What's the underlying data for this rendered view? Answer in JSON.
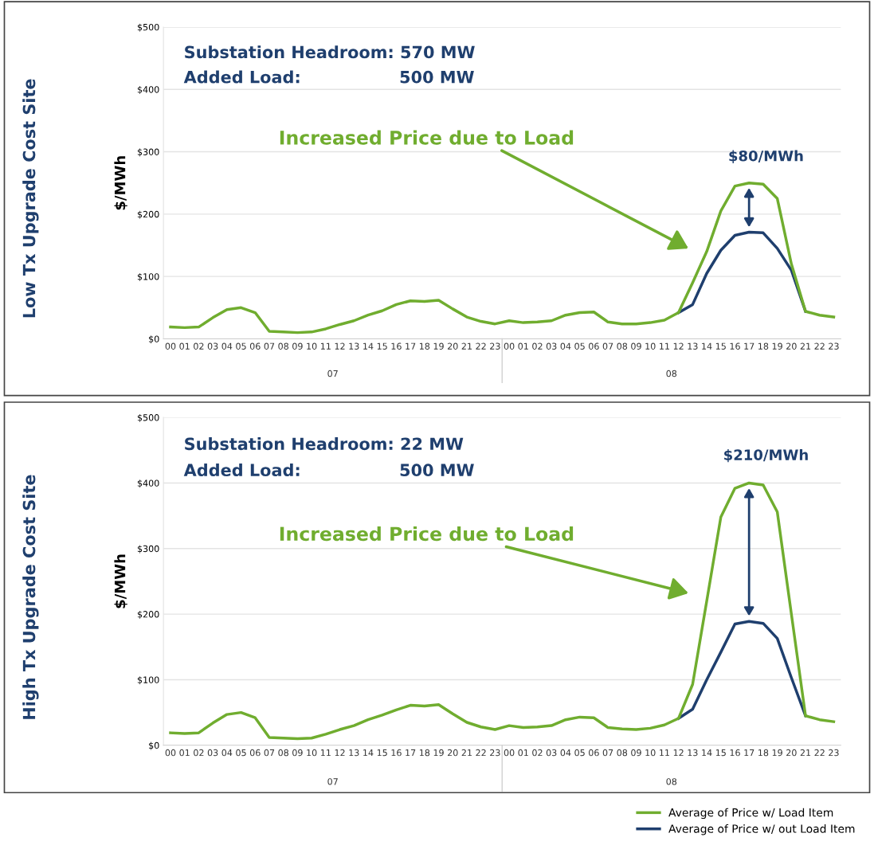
{
  "chart_data": [
    {
      "type": "line",
      "title": "Low Tx Upgrade Cost Site",
      "ylabel": "$/MWh",
      "categories": [
        "00",
        "01",
        "02",
        "03",
        "04",
        "05",
        "06",
        "07",
        "08",
        "09",
        "10",
        "11",
        "12",
        "13",
        "14",
        "15",
        "16",
        "17",
        "18",
        "19",
        "20",
        "21",
        "22",
        "23",
        "00",
        "01",
        "02",
        "03",
        "04",
        "05",
        "06",
        "07",
        "08",
        "09",
        "10",
        "11",
        "12",
        "13",
        "14",
        "15",
        "16",
        "17",
        "18",
        "19",
        "20",
        "21",
        "22",
        "23"
      ],
      "series": [
        {
          "name": "Average of Price w/ out Load Item",
          "color": "#1f3f6e",
          "values": [
            null,
            null,
            null,
            null,
            null,
            null,
            null,
            null,
            null,
            null,
            null,
            null,
            null,
            null,
            null,
            null,
            null,
            null,
            null,
            null,
            null,
            null,
            null,
            null,
            null,
            null,
            null,
            null,
            null,
            null,
            null,
            null,
            null,
            null,
            null,
            null,
            42,
            55,
            105,
            142,
            166,
            171,
            170,
            145,
            110,
            44,
            null,
            null
          ]
        },
        {
          "name": "Average of Price w/ Load Item",
          "color": "#70ad2f",
          "values": [
            19,
            18,
            19,
            34,
            47,
            50,
            42,
            12,
            11,
            10,
            11,
            16,
            23,
            29,
            38,
            45,
            55,
            61,
            60,
            62,
            48,
            35,
            28,
            24,
            29,
            26,
            27,
            29,
            38,
            42,
            43,
            27,
            24,
            24,
            26,
            30,
            42,
            90,
            140,
            205,
            245,
            250,
            248,
            225,
            120,
            44,
            38,
            35
          ]
        }
      ],
      "ylim": [
        0,
        500
      ],
      "yticks": [
        {
          "value": 0,
          "label": "$0"
        },
        {
          "value": 100,
          "label": "$100"
        },
        {
          "value": 200,
          "label": "$200"
        },
        {
          "value": 300,
          "label": "$300"
        },
        {
          "value": 400,
          "label": "$400"
        },
        {
          "value": 500,
          "label": "$500"
        }
      ],
      "grid": "y",
      "legend": "bottom right",
      "marker": "none",
      "line_style": "solid",
      "annotations": [
        "Substation Headroom: 570 MW",
        "Added Load:                 500 MW",
        "Increased Price due to Load",
        "$80/MWh",
        "07",
        "08"
      ]
    },
    {
      "type": "line",
      "title": "High Tx Upgrade Cost Site",
      "ylabel": "$/MWh",
      "categories": [
        "00",
        "01",
        "02",
        "03",
        "04",
        "05",
        "06",
        "07",
        "08",
        "09",
        "10",
        "11",
        "12",
        "13",
        "14",
        "15",
        "16",
        "17",
        "18",
        "19",
        "20",
        "21",
        "22",
        "23",
        "00",
        "01",
        "02",
        "03",
        "04",
        "05",
        "06",
        "07",
        "08",
        "09",
        "10",
        "11",
        "12",
        "13",
        "14",
        "15",
        "16",
        "17",
        "18",
        "19",
        "20",
        "21",
        "22",
        "23"
      ],
      "series": [
        {
          "color": "#1f3f6e",
          "values": [
            null,
            null,
            null,
            null,
            null,
            null,
            null,
            null,
            null,
            null,
            null,
            null,
            null,
            null,
            null,
            null,
            null,
            null,
            null,
            null,
            null,
            null,
            null,
            null,
            null,
            null,
            null,
            null,
            null,
            null,
            null,
            null,
            null,
            null,
            null,
            null,
            41,
            55,
            100,
            142,
            185,
            189,
            186,
            163,
            103,
            45,
            null,
            null
          ]
        },
        {
          "color": "#70ad2f",
          "values": [
            19,
            18,
            19,
            34,
            47,
            50,
            42,
            12,
            11,
            10,
            11,
            17,
            24,
            30,
            39,
            46,
            54,
            61,
            60,
            62,
            48,
            35,
            28,
            24,
            30,
            27,
            28,
            30,
            39,
            43,
            42,
            27,
            25,
            24,
            26,
            31,
            41,
            93,
            220,
            348,
            392,
            400,
            397,
            356,
            200,
            45,
            39,
            36
          ]
        }
      ],
      "ylim": [
        0,
        500
      ],
      "yticks": [
        {
          "value": 0,
          "label": "$0"
        },
        {
          "value": 100,
          "label": "$100"
        },
        {
          "value": 200,
          "label": "$200"
        },
        {
          "value": 300,
          "label": "$300"
        },
        {
          "value": 400,
          "label": "$400"
        },
        {
          "value": 500,
          "label": "$500"
        }
      ],
      "grid": "y",
      "marker": "none",
      "line_style": "solid",
      "annotations": [
        "Substation Headroom: 22 MW",
        "Added Load:                 500 MW",
        "Increased Price due to Load",
        "$210/MWh",
        "07",
        "08"
      ]
    }
  ]
}
